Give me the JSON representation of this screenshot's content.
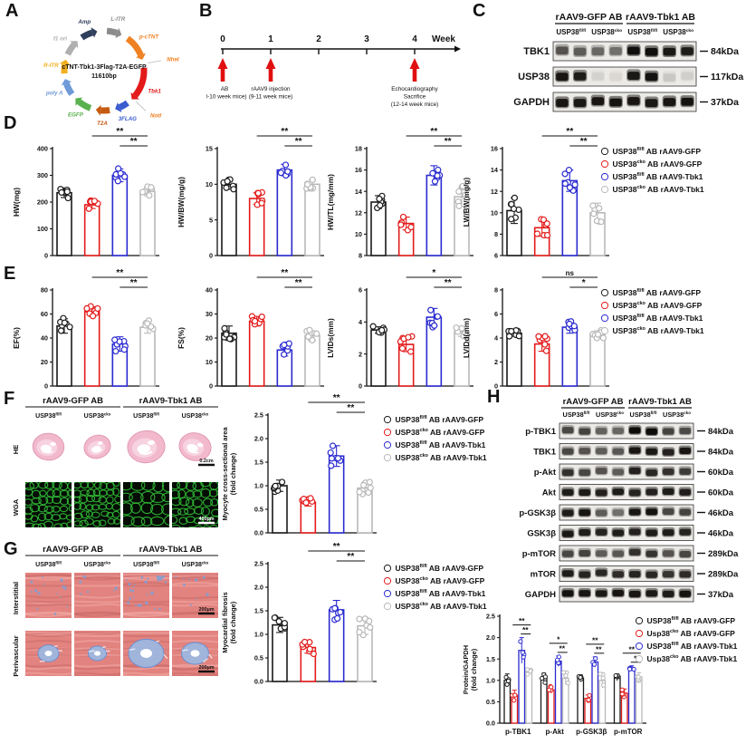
{
  "panels": {
    "A": {
      "label": "A",
      "plasmid": {
        "title": "cTNT-Tbk1-3Flag-T2A-EGFP",
        "size_label": "11610bp",
        "segments": [
          {
            "label": "L-ITR",
            "color": "#8c8c8c"
          },
          {
            "label": "p-cTNT",
            "color": "#f08122"
          },
          {
            "label": "Tbk1",
            "color": "#e31a1a"
          },
          {
            "label": "3FLAG",
            "color": "#3a5bd0"
          },
          {
            "label": "T2A",
            "color": "#c55a11"
          },
          {
            "label": "EGFP",
            "color": "#58b14c"
          },
          {
            "label": "poly A",
            "color": "#6f9ad8"
          },
          {
            "label": "R-ITR",
            "color": "#f2b01e"
          },
          {
            "label": "f1 ori",
            "color": "#b0b0b0"
          },
          {
            "label": "Amp",
            "color": "#2e3e5c"
          }
        ],
        "sites": [
          {
            "label": "NheI"
          },
          {
            "label": "NotI"
          }
        ]
      }
    },
    "B": {
      "label": "B",
      "timeline": {
        "unit": "Week",
        "ticks": [
          "0",
          "1",
          "2",
          "3",
          "4"
        ],
        "events": [
          {
            "week": 0,
            "lines": [
              "AB",
              "(8-10 week mice)"
            ]
          },
          {
            "week": 1,
            "lines": [
              "rAAV9 injection",
              "(9-11 week mice)"
            ]
          },
          {
            "week": 4,
            "lines": [
              "Echocardiography",
              "Sacrifice",
              "(12-14 week mice)"
            ]
          }
        ]
      }
    },
    "C": {
      "label": "C",
      "blot": {
        "group_headers": [
          "rAAV9-GFP AB",
          "rAAV9-Tbk1 AB"
        ],
        "lane_headers": [
          {
            "base": "USP38",
            "sup": "fl/fl"
          },
          {
            "base": "USP38",
            "sup": "cko"
          },
          {
            "base": "USP38",
            "sup": "fl/fl"
          },
          {
            "base": "USP38",
            "sup": "cko"
          }
        ],
        "rows": [
          {
            "label": "TBK1",
            "kda": "84kDa",
            "bands": [
              0.55,
              0.5,
              0.45,
              0.42,
              0.95,
              0.95,
              0.88,
              0.85
            ]
          },
          {
            "label": "USP38",
            "kda": "117kDa",
            "bands": [
              0.9,
              0.85,
              0.07,
              0.05,
              0.88,
              0.92,
              0.1,
              0.08
            ]
          },
          {
            "label": "GAPDH",
            "kda": "37kDa",
            "bands": [
              0.9,
              0.88,
              0.9,
              0.92,
              0.9,
              0.88,
              0.9,
              0.92
            ]
          }
        ]
      }
    },
    "D": {
      "label": "D"
    },
    "E": {
      "label": "E"
    },
    "F": {
      "label": "F",
      "histology": {
        "group_headers": [
          "rAAV9-GFP AB",
          "rAAV9-Tbk1 AB"
        ],
        "lane_headers": [
          {
            "base": "USP38",
            "sup": "fl/fl"
          },
          {
            "base": "USP38",
            "sup": "cko"
          },
          {
            "base": "USP38",
            "sup": "fl/fl"
          },
          {
            "base": "USP38",
            "sup": "cko"
          }
        ],
        "rows": [
          {
            "label": "HE",
            "type": "he",
            "scalebar": "0.2cm"
          },
          {
            "label": "WGA",
            "type": "wga",
            "scalebar": "400μm"
          }
        ]
      }
    },
    "G": {
      "label": "G",
      "histology": {
        "group_headers": [
          "rAAV9-GFP AB",
          "rAAV9-Tbk1 AB"
        ],
        "lane_headers": [
          {
            "base": "USP38",
            "sup": "fl/fl"
          },
          {
            "base": "USP38",
            "sup": "cko"
          },
          {
            "base": "USP38",
            "sup": "fl/fl"
          },
          {
            "base": "USP38",
            "sup": "cko"
          }
        ],
        "rows": [
          {
            "label": "Interstitial",
            "type": "masson_i",
            "scalebar": "200μm"
          },
          {
            "label": "Perivascular",
            "type": "masson_p",
            "scalebar": "200μm"
          }
        ]
      }
    },
    "H": {
      "label": "H",
      "blot": {
        "group_headers": [
          "rAAV9-GFP AB",
          "rAAV9-Tbk1 AB"
        ],
        "lane_headers": [
          {
            "base": "USP38",
            "sup": "fl/fl"
          },
          {
            "base": "USP38",
            "sup": "cko"
          },
          {
            "base": "USP38",
            "sup": "fl/fl"
          },
          {
            "base": "USP38",
            "sup": "cko"
          }
        ],
        "rows": [
          {
            "label": "p-TBK1",
            "kda": "84kDa",
            "bands": [
              0.6,
              0.62,
              0.48,
              0.46,
              0.98,
              0.98,
              0.62,
              0.58
            ]
          },
          {
            "label": "TBK1",
            "kda": "84kDa",
            "bands": [
              0.6,
              0.55,
              0.5,
              0.52,
              0.9,
              0.88,
              0.82,
              0.9
            ]
          },
          {
            "label": "p-Akt",
            "kda": "60kDa",
            "bands": [
              0.72,
              0.6,
              0.55,
              0.5,
              0.82,
              0.78,
              0.72,
              0.66
            ]
          },
          {
            "label": "Akt",
            "kda": "60kDa",
            "bands": [
              0.85,
              0.85,
              0.82,
              0.85,
              0.8,
              0.82,
              0.85,
              0.84
            ]
          },
          {
            "label": "p-GSK3β",
            "kda": "46kDa",
            "bands": [
              0.85,
              0.9,
              0.5,
              0.42,
              0.9,
              0.92,
              0.6,
              0.62
            ]
          },
          {
            "label": "GSK3β",
            "kda": "46kDa",
            "bands": [
              0.88,
              0.85,
              0.8,
              0.85,
              0.82,
              0.86,
              0.85,
              0.8
            ]
          },
          {
            "label": "p-mTOR",
            "kda": "289kDa",
            "bands": [
              0.6,
              0.62,
              0.5,
              0.52,
              0.72,
              0.7,
              0.55,
              0.6
            ]
          },
          {
            "label": "mTOR",
            "kda": "289kDa",
            "bands": [
              0.85,
              0.8,
              0.78,
              0.75,
              0.8,
              0.78,
              0.7,
              0.75
            ]
          },
          {
            "label": "GAPDH",
            "kda": "37kDa",
            "bands": [
              0.92,
              0.9,
              0.88,
              0.9,
              0.9,
              0.88,
              0.86,
              0.92
            ]
          }
        ]
      }
    }
  },
  "group_colors": [
    "#1a1a1a",
    "#e31a1a",
    "#2a2ad0",
    "#b9b9b9"
  ],
  "legend": {
    "entries": [
      {
        "base": "USP38",
        "sup": "fl/fl",
        "rest": " AB rAAV9-GFP",
        "color": "#1a1a1a"
      },
      {
        "base": "USP38",
        "sup": "cko",
        "rest": " AB rAAV9-GFP",
        "color": "#e31a1a"
      },
      {
        "base": "USP38",
        "sup": "fl/fl",
        "rest": " AB rAAV9-Tbk1",
        "color": "#2a2ad0"
      },
      {
        "base": "USP38",
        "sup": "cko",
        "rest": " AB rAAV9-Tbk1",
        "color": "#b9b9b9"
      }
    ]
  },
  "legend_h": {
    "entries": [
      {
        "base": "USP38",
        "sup": "fl/fl",
        "rest": " AB rAAV9-GFP",
        "color": "#1a1a1a"
      },
      {
        "base": "Usp38",
        "sup": "cko",
        "rest": " AB rAAV9-GFP",
        "color": "#e31a1a"
      },
      {
        "base": "USP38",
        "sup": "fl/fl",
        "rest": " AB rAAV9-Tbk1",
        "color": "#2a2ad0"
      },
      {
        "base": "Usp38",
        "sup": "cko",
        "rest": " AB rAAV9-Tbk1",
        "color": "#b9b9b9"
      }
    ]
  },
  "chart_data": [
    {
      "id": "HW",
      "panel": "D",
      "type": "scatter-bar",
      "ylabel": [
        "HW(mg)"
      ],
      "ymin": 0,
      "ymax": 400,
      "yticks": [
        "0",
        "100",
        "200",
        "300",
        "400"
      ],
      "values": [
        235,
        190,
        300,
        240
      ],
      "errors": [
        18,
        14,
        24,
        16
      ],
      "sig": [
        {
          "from": 1,
          "to": 3,
          "label": "**"
        },
        {
          "from": 2,
          "to": 3,
          "label": "**"
        }
      ]
    },
    {
      "id": "HWBW",
      "panel": "D",
      "type": "scatter-bar",
      "ylabel": [
        "HW/BW(mg/g)"
      ],
      "ymin": 0,
      "ymax": 15,
      "yticks": [
        "0",
        "5",
        "10",
        "15"
      ],
      "values": [
        10,
        8,
        12,
        10
      ],
      "errors": [
        0.7,
        0.8,
        0.8,
        0.6
      ],
      "sig": [
        {
          "from": 1,
          "to": 3,
          "label": "**"
        },
        {
          "from": 2,
          "to": 3,
          "label": "**"
        }
      ]
    },
    {
      "id": "HWTL",
      "panel": "D",
      "type": "scatter-bar",
      "ylabel": [
        "HW/TL(mg/mm)"
      ],
      "ymin": 8,
      "ymax": 18,
      "yticks": [
        "8",
        "10",
        "12",
        "14",
        "16",
        "18"
      ],
      "values": [
        13,
        11,
        15.5,
        13.5
      ],
      "errors": [
        0.6,
        0.6,
        0.9,
        0.9
      ],
      "sig": [
        {
          "from": 1,
          "to": 3,
          "label": "**"
        },
        {
          "from": 2,
          "to": 3,
          "label": "**"
        }
      ]
    },
    {
      "id": "LWBW",
      "panel": "D",
      "type": "scatter-bar",
      "ylabel": [
        "LW/BW(mg/g)"
      ],
      "ymin": 6,
      "ymax": 16,
      "yticks": [
        "6",
        "8",
        "10",
        "12",
        "14",
        "16"
      ],
      "values": [
        10.2,
        8.6,
        13,
        10
      ],
      "errors": [
        1.2,
        0.8,
        1.0,
        0.9
      ],
      "sig": [
        {
          "from": 1,
          "to": 3,
          "label": "**"
        },
        {
          "from": 2,
          "to": 3,
          "label": "**"
        }
      ]
    },
    {
      "id": "EF",
      "panel": "E",
      "type": "scatter-bar",
      "ylabel": [
        "EF(%)"
      ],
      "ymin": 0,
      "ymax": 80,
      "yticks": [
        "0",
        "20",
        "40",
        "60",
        "80"
      ],
      "values": [
        50,
        62,
        35,
        49
      ],
      "errors": [
        6,
        4,
        6,
        5
      ],
      "sig": [
        {
          "from": 1,
          "to": 3,
          "label": "**"
        },
        {
          "from": 2,
          "to": 3,
          "label": "**"
        }
      ]
    },
    {
      "id": "FS",
      "panel": "E",
      "type": "scatter-bar",
      "ylabel": [
        "FS(%)"
      ],
      "ymin": 0,
      "ymax": 40,
      "yticks": [
        "0",
        "10",
        "20",
        "30",
        "40"
      ],
      "values": [
        22,
        27,
        15,
        21
      ],
      "errors": [
        3,
        2,
        2.5,
        2
      ],
      "sig": [
        {
          "from": 1,
          "to": 3,
          "label": "**"
        },
        {
          "from": 2,
          "to": 3,
          "label": "**"
        }
      ]
    },
    {
      "id": "LVIDs",
      "panel": "E",
      "type": "scatter-bar",
      "ylabel": [
        "LVIDs(mm)"
      ],
      "ymin": 0,
      "ymax": 6,
      "yticks": [
        "0",
        "2",
        "4",
        "6"
      ],
      "values": [
        3.5,
        2.6,
        4.3,
        3.4
      ],
      "errors": [
        0.2,
        0.45,
        0.55,
        0.3
      ],
      "sig": [
        {
          "from": 1,
          "to": 3,
          "label": "*"
        },
        {
          "from": 2,
          "to": 3,
          "label": "**"
        }
      ]
    },
    {
      "id": "LVIDd",
      "panel": "E",
      "type": "scatter-bar",
      "ylabel": [
        "LVIDd(mm)"
      ],
      "ymin": 0,
      "ymax": 8,
      "yticks": [
        "0",
        "2",
        "4",
        "6",
        "8"
      ],
      "values": [
        4.4,
        3.5,
        4.9,
        4.3
      ],
      "errors": [
        0.25,
        0.6,
        0.5,
        0.3
      ],
      "sig": [
        {
          "from": 1,
          "to": 3,
          "label": "ns"
        },
        {
          "from": 2,
          "to": 3,
          "label": "*"
        }
      ]
    },
    {
      "id": "MCSA",
      "panel": "F",
      "type": "scatter-bar",
      "ylabel": [
        "Myocyte cross-sectional area",
        "(fold change)"
      ],
      "ymin": 0,
      "ymax": 2.5,
      "yticks": [
        "0.0",
        "0.5",
        "1.0",
        "1.5",
        "2.0",
        "2.5"
      ],
      "values": [
        1.0,
        0.65,
        1.63,
        0.95
      ],
      "errors": [
        0.12,
        0.08,
        0.22,
        0.12
      ],
      "sig": [
        {
          "from": 1,
          "to": 3,
          "label": "**"
        },
        {
          "from": 2,
          "to": 3,
          "label": "**"
        }
      ]
    },
    {
      "id": "FIB",
      "panel": "G",
      "type": "scatter-bar",
      "ylabel": [
        "Myocardial fibrosis",
        "(fold change)"
      ],
      "ymin": 0,
      "ymax": 2.5,
      "yticks": [
        "0.0",
        "0.5",
        "1.0",
        "1.5",
        "2.0",
        "2.5"
      ],
      "values": [
        1.2,
        0.72,
        1.52,
        1.18
      ],
      "errors": [
        0.16,
        0.12,
        0.2,
        0.18
      ],
      "sig": [
        {
          "from": 1,
          "to": 3,
          "label": "**"
        },
        {
          "from": 2,
          "to": 3,
          "label": "**"
        }
      ]
    },
    {
      "id": "QUANT",
      "panel": "H",
      "type": "grouped-scatter-bar",
      "ylabel": [
        "Protein/GAPDH",
        "(fold change)"
      ],
      "ymin": 0,
      "ymax": 2.5,
      "yticks": [
        "0.0",
        "0.5",
        "1.0",
        "1.5",
        "2.0",
        "2.5"
      ],
      "categories": [
        "p-TBK1",
        "p-Akt",
        "p-GSK3β",
        "p-mTOR"
      ],
      "series": [
        {
          "name": "USP38fl/fl AB rAAV9-GFP",
          "values": [
            1.0,
            1.05,
            1.05,
            1.07
          ],
          "errors": [
            0.15,
            0.12,
            0.08,
            0.08
          ]
        },
        {
          "name": "Usp38cko AB rAAV9-GFP",
          "values": [
            0.65,
            0.78,
            0.58,
            0.7
          ],
          "errors": [
            0.12,
            0.08,
            0.08,
            0.1
          ]
        },
        {
          "name": "USP38fl/fl AB rAAV9-Tbk1",
          "values": [
            1.7,
            1.45,
            1.43,
            1.28
          ],
          "errors": [
            0.3,
            0.12,
            0.12,
            0.06
          ]
        },
        {
          "name": "Usp38cko AB rAAV9-Tbk1",
          "values": [
            1.2,
            1.05,
            1.0,
            1.08
          ],
          "errors": [
            0.06,
            0.15,
            0.18,
            0.1
          ]
        }
      ],
      "sig": [
        [
          "**",
          "**"
        ],
        [
          "*",
          "**"
        ],
        [
          "**",
          "**"
        ],
        [
          "**",
          "*"
        ]
      ]
    }
  ]
}
